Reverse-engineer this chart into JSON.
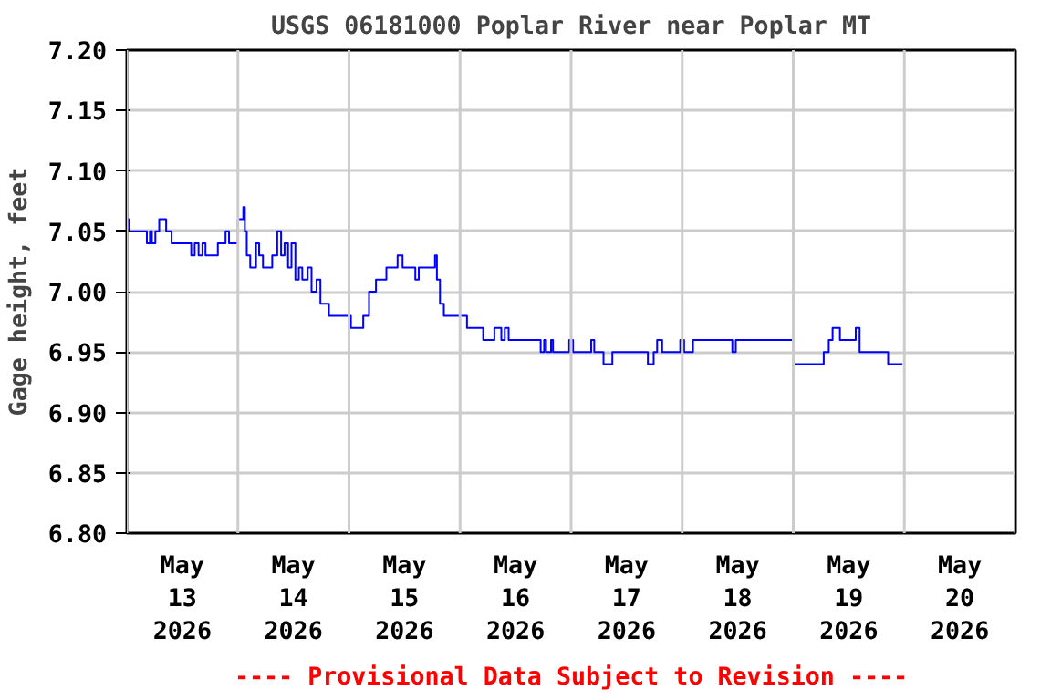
{
  "chart_data": {
    "type": "step",
    "title": "USGS 06181000 Poplar River near Poplar MT",
    "ylabel": "Gage height, feet",
    "annotations": [
      "---- Provisional Data Subject to Revision ----"
    ],
    "x": [
      "2026-05-13T00:00",
      "2026-05-13T00:25",
      "2026-05-13T04:20",
      "2026-05-13T05:00",
      "2026-05-13T05:25",
      "2026-05-13T06:10",
      "2026-05-13T07:00",
      "2026-05-13T08:30",
      "2026-05-13T09:40",
      "2026-05-13T13:55",
      "2026-05-13T14:40",
      "2026-05-13T15:30",
      "2026-05-13T16:20",
      "2026-05-13T17:00",
      "2026-05-13T19:40",
      "2026-05-13T21:20",
      "2026-05-13T22:05",
      "2026-05-13T23:35",
      "2026-05-14T00:00",
      "2026-05-14T01:10",
      "2026-05-14T01:30",
      "2026-05-14T01:55",
      "2026-05-14T02:40",
      "2026-05-14T03:55",
      "2026-05-14T04:35",
      "2026-05-14T05:25",
      "2026-05-14T07:25",
      "2026-05-14T08:30",
      "2026-05-14T09:20",
      "2026-05-14T10:05",
      "2026-05-14T10:50",
      "2026-05-14T11:35",
      "2026-05-14T12:25",
      "2026-05-14T13:10",
      "2026-05-14T13:55",
      "2026-05-14T15:05",
      "2026-05-14T15:55",
      "2026-05-14T17:00",
      "2026-05-14T17:50",
      "2026-05-14T19:40",
      "2026-05-15T00:25",
      "2026-05-15T03:05",
      "2026-05-15T04:20",
      "2026-05-15T05:50",
      "2026-05-15T08:05",
      "2026-05-15T10:30",
      "2026-05-15T11:35",
      "2026-05-15T14:20",
      "2026-05-15T15:05",
      "2026-05-15T18:35",
      "2026-05-15T19:00",
      "2026-05-15T19:40",
      "2026-05-15T20:30",
      "2026-05-16T01:30",
      "2026-05-16T05:00",
      "2026-05-16T07:25",
      "2026-05-16T08:55",
      "2026-05-16T09:40",
      "2026-05-16T10:30",
      "2026-05-16T17:25",
      "2026-05-16T18:10",
      "2026-05-16T18:35",
      "2026-05-16T19:40",
      "2026-05-16T20:05",
      "2026-05-16T23:35",
      "2026-05-17T00:25",
      "2026-05-17T04:20",
      "2026-05-17T05:00",
      "2026-05-17T07:00",
      "2026-05-17T08:55",
      "2026-05-17T16:35",
      "2026-05-17T17:50",
      "2026-05-17T18:35",
      "2026-05-17T19:40",
      "2026-05-17T23:35",
      "2026-05-18T00:25",
      "2026-05-18T02:20",
      "2026-05-18T10:50",
      "2026-05-18T11:35",
      "2026-05-18T23:10",
      "2026-05-19T00:00",
      "2026-05-19T06:35",
      "2026-05-19T07:40",
      "2026-05-19T08:30",
      "2026-05-19T10:05",
      "2026-05-19T13:30",
      "2026-05-19T14:20",
      "2026-05-19T20:30",
      "2026-05-19T23:35"
    ],
    "series": [
      {
        "color": "#0000ff",
        "values": [
          7.06,
          7.05,
          7.04,
          7.05,
          7.04,
          7.05,
          7.06,
          7.05,
          7.04,
          7.03,
          7.04,
          7.03,
          7.04,
          7.03,
          7.04,
          7.05,
          7.04,
          7.04,
          7.06,
          7.07,
          7.05,
          7.03,
          7.02,
          7.04,
          7.03,
          7.02,
          7.03,
          7.05,
          7.03,
          7.04,
          7.02,
          7.04,
          7.01,
          7.02,
          7.01,
          7.02,
          7.0,
          7.01,
          6.99,
          6.98,
          6.97,
          6.98,
          7.0,
          7.01,
          7.02,
          7.03,
          7.02,
          7.01,
          7.02,
          7.03,
          7.01,
          6.99,
          6.98,
          6.97,
          6.96,
          6.97,
          6.96,
          6.97,
          6.96,
          6.95,
          6.96,
          6.95,
          6.96,
          6.95,
          6.96,
          6.95,
          6.96,
          6.95,
          6.94,
          6.95,
          6.94,
          6.95,
          6.96,
          6.95,
          6.96,
          6.95,
          6.96,
          6.95,
          6.96,
          6.96,
          6.94,
          6.95,
          6.96,
          6.97,
          6.96,
          6.97,
          6.95,
          6.94,
          6.94
        ]
      }
    ],
    "xlim": [
      "2026-05-13T00:00",
      "2026-05-21T00:00"
    ],
    "xticks": [
      {
        "value": "2026-05-13T00:00",
        "label": null
      },
      {
        "value": "2026-05-13T12:00",
        "label": "May\n13\n2026"
      },
      {
        "value": "2026-05-14T00:00",
        "label": null
      },
      {
        "value": "2026-05-14T12:00",
        "label": "May\n14\n2026"
      },
      {
        "value": "2026-05-15T00:00",
        "label": null
      },
      {
        "value": "2026-05-15T12:00",
        "label": "May\n15\n2026"
      },
      {
        "value": "2026-05-16T00:00",
        "label": null
      },
      {
        "value": "2026-05-16T12:00",
        "label": "May\n16\n2026"
      },
      {
        "value": "2026-05-17T00:00",
        "label": null
      },
      {
        "value": "2026-05-17T12:00",
        "label": "May\n17\n2026"
      },
      {
        "value": "2026-05-18T00:00",
        "label": null
      },
      {
        "value": "2026-05-18T12:00",
        "label": "May\n18\n2026"
      },
      {
        "value": "2026-05-19T00:00",
        "label": null
      },
      {
        "value": "2026-05-19T12:00",
        "label": "May\n19\n2026"
      },
      {
        "value": "2026-05-20T00:00",
        "label": null
      },
      {
        "value": "2026-05-20T12:00",
        "label": "May\n20\n2026"
      },
      {
        "value": "2026-05-21T00:00",
        "label": null
      }
    ],
    "ylim": [
      6.8,
      7.2
    ],
    "yticks": [
      {
        "value": 6.8,
        "label": "6.80"
      },
      {
        "value": 6.85,
        "label": "6.85"
      },
      {
        "value": 6.9,
        "label": "6.90"
      },
      {
        "value": 6.95,
        "label": "6.95"
      },
      {
        "value": 7.0,
        "label": "7.00"
      },
      {
        "value": 7.05,
        "label": "7.05"
      },
      {
        "value": 7.1,
        "label": "7.10"
      },
      {
        "value": 7.15,
        "label": "7.15"
      },
      {
        "value": 7.2,
        "label": "7.20"
      }
    ],
    "grid": true,
    "line_style": "solid"
  }
}
